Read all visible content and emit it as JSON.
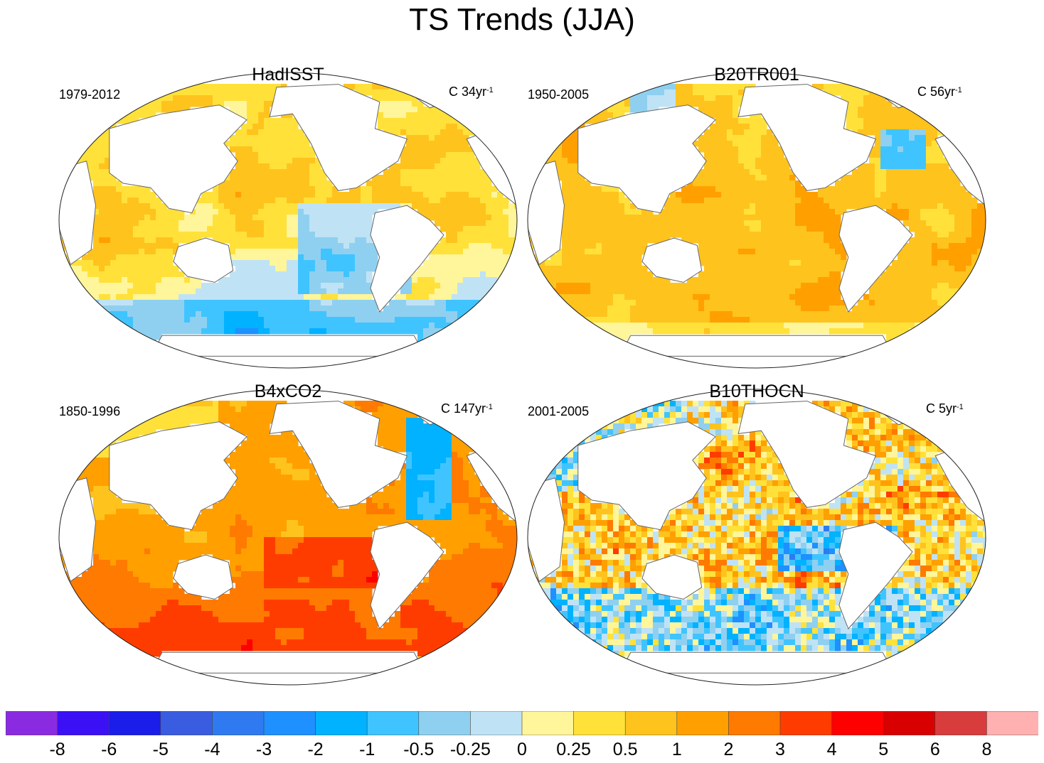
{
  "title": "TS Trends (JJA)",
  "panels": [
    {
      "name": "HadISST",
      "period": "1979-2012",
      "units_prefix": "C 34yr",
      "units_sup": "-1",
      "theme": "mixed"
    },
    {
      "name": "B20TR001",
      "period": "1950-2005",
      "units_prefix": "C 56yr",
      "units_sup": "-1",
      "theme": "warm"
    },
    {
      "name": "B4xCO2",
      "period": "1850-1996",
      "units_prefix": "C 147yr",
      "units_sup": "-1",
      "theme": "hot"
    },
    {
      "name": "B10THOCN",
      "period": "2001-2005",
      "units_prefix": "C 5yr",
      "units_sup": "-1",
      "theme": "noisy"
    }
  ],
  "chart_data": {
    "type": "heatmap",
    "title": "TS Trends (JJA)",
    "projection": "Robinson-like global maps, Pacific-centered",
    "variable": "surface temperature trend",
    "unit": "C",
    "colorbar": {
      "levels": [
        "-8",
        "-6",
        "-5",
        "-4",
        "-3",
        "-2",
        "-1",
        "-0.5",
        "-0.25",
        "0",
        "0.25",
        "0.5",
        "1",
        "2",
        "3",
        "4",
        "5",
        "6",
        "8"
      ],
      "colors": [
        "#8a2be2",
        "#3b10f5",
        "#1a1ee8",
        "#3a5ce0",
        "#2f7af0",
        "#1e90ff",
        "#00b2ff",
        "#40c4ff",
        "#8fd0f0",
        "#bfe3f5",
        "#fff59a",
        "#ffe13a",
        "#ffc31e",
        "#ffa000",
        "#ff7a00",
        "#ff3c00",
        "#ff0000",
        "#d80000",
        "#d83c3c",
        "#ffb0b0"
      ]
    },
    "panels": [
      {
        "name": "HadISST",
        "period": "1979-2012",
        "trend_length_years": 34
      },
      {
        "name": "B20TR001",
        "period": "1950-2005",
        "trend_length_years": 56
      },
      {
        "name": "B4xCO2",
        "period": "1850-1996",
        "trend_length_years": 147
      },
      {
        "name": "B10THOCN",
        "period": "2001-2005",
        "trend_length_years": 5
      }
    ]
  }
}
